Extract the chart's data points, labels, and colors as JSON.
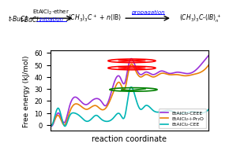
{
  "title_top": "t-BuCl",
  "reaction_label1": "EtAlCl₂•ether",
  "reaction_label2": "initiation",
  "reaction_mid": "(CH₃)₃C⁺ + n(IB)",
  "reaction_label3": "propagation",
  "reaction_end": "(CH₃)₃C•(IB)⁺_n",
  "xlabel": "reaction coordinate",
  "ylabel": "Free energy (kJ/mol)",
  "ylim": [
    -5,
    62
  ],
  "legend": [
    "EtAlCl₂-CEEE",
    "EtAlCl₂-i-Pr₂O",
    "EtAlCl₂-CEE"
  ],
  "colors": [
    "#9b30d9",
    "#e8820a",
    "#00b5b5"
  ],
  "background_color": "#ffffff",
  "purple_x": [
    0,
    0.3,
    0.5,
    0.9,
    1.2,
    1.5,
    1.9,
    2.3,
    2.6,
    2.9,
    3.2,
    3.5,
    4.0,
    4.4,
    4.7,
    5.0,
    5.4,
    5.7,
    6.0,
    6.5,
    7.0,
    7.5,
    8.0,
    8.5,
    9.0,
    9.5,
    10.0
  ],
  "purple_y": [
    0,
    5,
    10,
    2,
    15,
    23,
    20,
    17,
    20,
    22,
    20,
    16,
    34,
    40,
    35,
    53,
    48,
    42,
    44,
    42,
    45,
    43,
    44,
    43,
    44,
    50,
    58
  ],
  "orange_x": [
    0,
    0.3,
    0.5,
    0.9,
    1.2,
    1.5,
    1.9,
    2.3,
    2.6,
    2.9,
    3.2,
    3.5,
    4.0,
    4.4,
    4.7,
    5.0,
    5.4,
    5.7,
    6.0,
    6.5,
    7.0,
    7.5,
    8.0,
    8.5,
    9.0,
    9.5,
    10.0
  ],
  "orange_y": [
    0,
    5,
    8,
    0,
    10,
    17,
    16,
    13,
    15,
    16,
    13,
    14,
    28,
    35,
    30,
    48,
    45,
    40,
    42,
    40,
    43,
    42,
    42,
    41,
    42,
    44,
    50
  ],
  "cyan_x": [
    0,
    0.3,
    0.5,
    0.9,
    1.2,
    1.5,
    1.9,
    2.3,
    2.6,
    2.9,
    3.2,
    3.5,
    4.0,
    4.4,
    4.7,
    5.0,
    5.4,
    5.7,
    6.0,
    6.5,
    7.0,
    7.5,
    8.0,
    8.5,
    9.0,
    9.5,
    10.0
  ],
  "cyan_y": [
    0,
    8,
    14,
    -1,
    7,
    10,
    7,
    3,
    5,
    8,
    5,
    3,
    6,
    9,
    7,
    29,
    22,
    13,
    16,
    12,
    11,
    12,
    10,
    10,
    11,
    10,
    13
  ]
}
